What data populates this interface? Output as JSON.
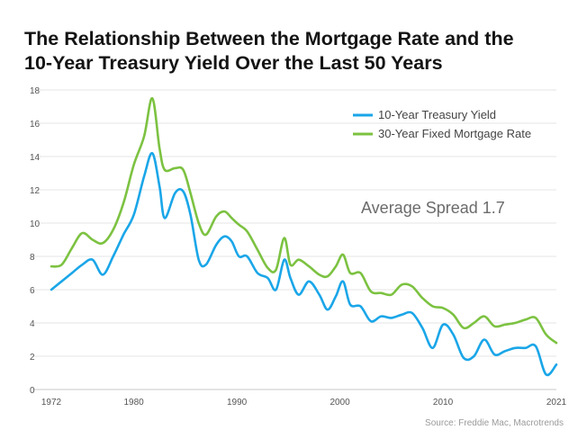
{
  "title_line1": "The Relationship Between the Mortgage Rate and the",
  "title_line2": "10-Year Treasury Yield Over the Last 50 Years",
  "annotation": "Average Spread 1.7",
  "source": "Source: Freddie Mac, Macrotrends",
  "colors": {
    "treasury": "#1aa6e8",
    "mortgage": "#7cc241",
    "grid": "#e4e4e4"
  },
  "chart_data": {
    "type": "line",
    "title": "The Relationship Between the Mortgage Rate and the 10-Year Treasury Yield Over the Last 50 Years",
    "xlabel": "",
    "ylabel": "",
    "xlim": [
      1972,
      2021
    ],
    "ylim": [
      0,
      18
    ],
    "x_ticks": [
      "1972",
      "1980",
      "1990",
      "2000",
      "2010",
      "2021"
    ],
    "y_ticks": [
      "0",
      "2",
      "4",
      "6",
      "8",
      "10",
      "12",
      "14",
      "16",
      "18"
    ],
    "grid": "horizontal",
    "legend_position": "top-right",
    "legend": [
      "10-Year Treasury Yield",
      "30-Year Fixed Mortgage Rate"
    ],
    "series": [
      {
        "name": "10-Year Treasury Yield",
        "x": [
          1972,
          1973,
          1974,
          1975,
          1976,
          1977,
          1978,
          1979,
          1980,
          1981,
          1981.8,
          1982.5,
          1983,
          1984,
          1984.8,
          1985.5,
          1986.3,
          1987,
          1988,
          1988.8,
          1989.5,
          1990.2,
          1991,
          1992,
          1993,
          1993.8,
          1994.6,
          1995.2,
          1996,
          1997,
          1998,
          1998.8,
          1999.6,
          2000.3,
          2001,
          2002,
          2003,
          2004,
          2005,
          2006,
          2007,
          2008,
          2009,
          2010,
          2011,
          2012,
          2013,
          2014,
          2015,
          2016,
          2017,
          2018,
          2019,
          2020,
          2021
        ],
        "values": [
          6.0,
          6.5,
          7.0,
          7.5,
          7.8,
          6.9,
          8.0,
          9.3,
          10.5,
          12.8,
          14.2,
          12.2,
          10.3,
          11.8,
          11.9,
          10.5,
          7.8,
          7.5,
          8.7,
          9.2,
          8.9,
          8.0,
          8.0,
          7.0,
          6.7,
          6.0,
          7.8,
          6.7,
          5.7,
          6.5,
          5.7,
          4.8,
          5.6,
          6.5,
          5.1,
          5.0,
          4.1,
          4.4,
          4.3,
          4.5,
          4.6,
          3.7,
          2.5,
          3.9,
          3.3,
          1.9,
          2.0,
          3.0,
          2.1,
          2.3,
          2.5,
          2.5,
          2.6,
          0.9,
          1.5
        ]
      },
      {
        "name": "30-Year Fixed Mortgage Rate",
        "x": [
          1972,
          1973,
          1974,
          1975,
          1976,
          1977,
          1978,
          1979,
          1980,
          1981,
          1981.8,
          1982.5,
          1983,
          1984,
          1984.8,
          1985.5,
          1986.3,
          1987,
          1988,
          1988.8,
          1989.5,
          1990.2,
          1991,
          1992,
          1993,
          1993.8,
          1994.6,
          1995.2,
          1996,
          1997,
          1998,
          1998.8,
          1999.6,
          2000.3,
          2001,
          2002,
          2003,
          2004,
          2005,
          2006,
          2007,
          2008,
          2009,
          2010,
          2011,
          2012,
          2013,
          2014,
          2015,
          2016,
          2017,
          2018,
          2019,
          2020,
          2021
        ],
        "values": [
          7.4,
          7.5,
          8.5,
          9.4,
          9.0,
          8.8,
          9.6,
          11.2,
          13.5,
          15.2,
          17.5,
          14.5,
          13.2,
          13.3,
          13.2,
          11.8,
          10.0,
          9.3,
          10.4,
          10.7,
          10.3,
          9.9,
          9.5,
          8.4,
          7.3,
          7.2,
          9.1,
          7.5,
          7.8,
          7.4,
          6.9,
          6.8,
          7.4,
          8.1,
          7.0,
          7.0,
          5.9,
          5.8,
          5.7,
          6.3,
          6.2,
          5.5,
          5.0,
          4.9,
          4.5,
          3.7,
          4.0,
          4.4,
          3.8,
          3.9,
          4.0,
          4.2,
          4.3,
          3.3,
          2.8
        ]
      }
    ]
  }
}
